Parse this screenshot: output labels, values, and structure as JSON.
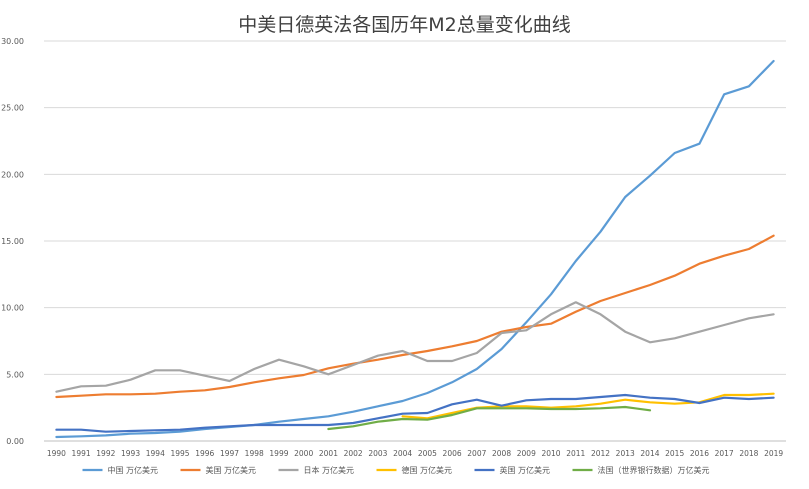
{
  "chart_data": {
    "type": "line",
    "title": "中美日德英法各国历年M2总量变化曲线",
    "xlabel": "",
    "ylabel": "",
    "ylim": [
      0,
      30
    ],
    "y_tick_labels": [
      "0.00",
      "5.00",
      "10.00",
      "15.00",
      "20.00",
      "25.00",
      "30.00"
    ],
    "grid": "horizontal",
    "legend_position": "bottom",
    "categories": [
      "1990",
      "1991",
      "1992",
      "1993",
      "1994",
      "1995",
      "1996",
      "1997",
      "1998",
      "1999",
      "2000",
      "2001",
      "2002",
      "2003",
      "2004",
      "2005",
      "2006",
      "2007",
      "2008",
      "2009",
      "2010",
      "2011",
      "2012",
      "2013",
      "2014",
      "2015",
      "2016",
      "2017",
      "2018",
      "2019"
    ],
    "series": [
      {
        "name": "中国 万亿美元",
        "color": "#5b9bd5",
        "values": [
          0.3,
          0.35,
          0.42,
          0.55,
          0.6,
          0.7,
          0.9,
          1.05,
          1.2,
          1.45,
          1.65,
          1.85,
          2.2,
          2.6,
          3.0,
          3.6,
          4.4,
          5.4,
          6.9,
          8.9,
          11.0,
          13.5,
          15.7,
          18.3,
          19.9,
          21.6,
          22.3,
          26.0,
          26.6,
          28.5
        ]
      },
      {
        "name": "美国 万亿美元",
        "color": "#ed7d31",
        "values": [
          3.3,
          3.4,
          3.5,
          3.5,
          3.55,
          3.7,
          3.8,
          4.05,
          4.4,
          4.7,
          4.95,
          5.45,
          5.8,
          6.1,
          6.45,
          6.75,
          7.1,
          7.5,
          8.2,
          8.55,
          8.8,
          9.7,
          10.5,
          11.1,
          11.7,
          12.4,
          13.3,
          13.9,
          14.4,
          15.4
        ]
      },
      {
        "name": "日本 万亿美元",
        "color": "#a5a5a5",
        "values": [
          3.7,
          4.1,
          4.15,
          4.6,
          5.3,
          5.3,
          4.9,
          4.5,
          5.4,
          6.1,
          5.6,
          5.0,
          5.7,
          6.4,
          6.75,
          6.0,
          6.0,
          6.6,
          8.1,
          8.3,
          9.5,
          10.4,
          9.5,
          8.2,
          7.4,
          7.7,
          8.2,
          8.7,
          9.2,
          9.5
        ]
      },
      {
        "name": "德国 万亿美元",
        "color": "#ffc000",
        "values": [
          null,
          null,
          null,
          null,
          null,
          null,
          null,
          null,
          null,
          null,
          null,
          null,
          null,
          null,
          1.85,
          1.7,
          2.1,
          2.5,
          2.6,
          2.6,
          2.5,
          2.6,
          2.8,
          3.1,
          2.9,
          2.8,
          2.9,
          3.45,
          3.45,
          3.55
        ]
      },
      {
        "name": "英国 万亿美元",
        "color": "#4472c4",
        "values": [
          0.85,
          0.85,
          0.7,
          0.75,
          0.8,
          0.85,
          1.0,
          1.1,
          1.2,
          1.2,
          1.2,
          1.2,
          1.35,
          1.7,
          2.05,
          2.1,
          2.75,
          3.1,
          2.65,
          3.05,
          3.15,
          3.15,
          3.3,
          3.45,
          3.25,
          3.15,
          2.85,
          3.25,
          3.15,
          3.25
        ]
      },
      {
        "name": "法国（世界银行数据）万亿美元",
        "color": "#70ad47",
        "values": [
          null,
          null,
          null,
          null,
          null,
          null,
          null,
          null,
          null,
          null,
          null,
          0.9,
          1.1,
          1.45,
          1.65,
          1.6,
          1.95,
          2.45,
          2.45,
          2.45,
          2.4,
          2.4,
          2.45,
          2.55,
          2.3,
          null,
          null,
          null,
          null,
          null
        ]
      }
    ]
  }
}
